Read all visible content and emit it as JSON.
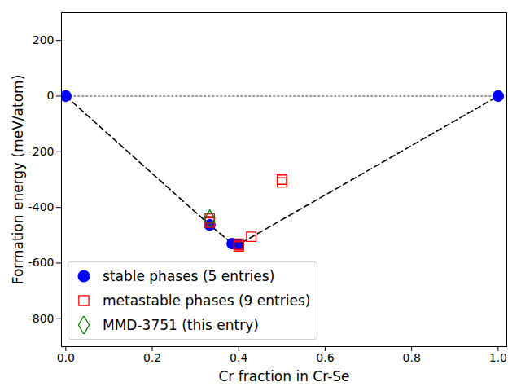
{
  "chart_data": {
    "type": "scatter",
    "x_label": "Cr fraction in Cr-Se",
    "y_label": "Formation energy (meV/atom)",
    "xlim": [
      -0.01,
      1.02
    ],
    "ylim": [
      -900,
      300
    ],
    "xticks": [
      {
        "value": 0,
        "label": "0.0"
      },
      0.2,
      0.4,
      0.6,
      0.8,
      {
        "value": 1,
        "label": "1.0"
      }
    ],
    "yticks": [
      -800,
      -600,
      -400,
      -200,
      0,
      200
    ],
    "legend": "lower left",
    "series": [
      {
        "type": "line",
        "color": "gray",
        "line_style": "dotted",
        "x": [
          0,
          1
        ],
        "values": [
          0,
          0
        ]
      },
      {
        "type": "line",
        "color": "black",
        "line_style": "dashed",
        "x": [
          0,
          0.333,
          0.385,
          0.4,
          1
        ],
        "values": [
          0,
          -463,
          -530,
          -533,
          0
        ]
      },
      {
        "name": "stable phases (5 entries)",
        "type": "scatter",
        "color": "blue",
        "marker": "circle",
        "x": [
          0,
          0.333,
          0.385,
          0.4,
          1
        ],
        "values": [
          0,
          -463,
          -530,
          -533,
          0
        ]
      },
      {
        "name": "metastable phases (9 entries)",
        "type": "scatter",
        "color": "red",
        "marker": "square",
        "x": [
          0.333,
          0.333,
          0.333,
          0.4,
          0.4,
          0.4,
          0.429,
          0.5,
          0.5
        ],
        "values": [
          -440,
          -450,
          -455,
          -530,
          -535,
          -540,
          -505,
          -300,
          -310
        ]
      },
      {
        "name": "MMD-3751 (this entry)",
        "type": "scatter",
        "color": "green",
        "marker": "diamond",
        "x": [
          0.333
        ],
        "values": [
          -440
        ]
      }
    ]
  }
}
